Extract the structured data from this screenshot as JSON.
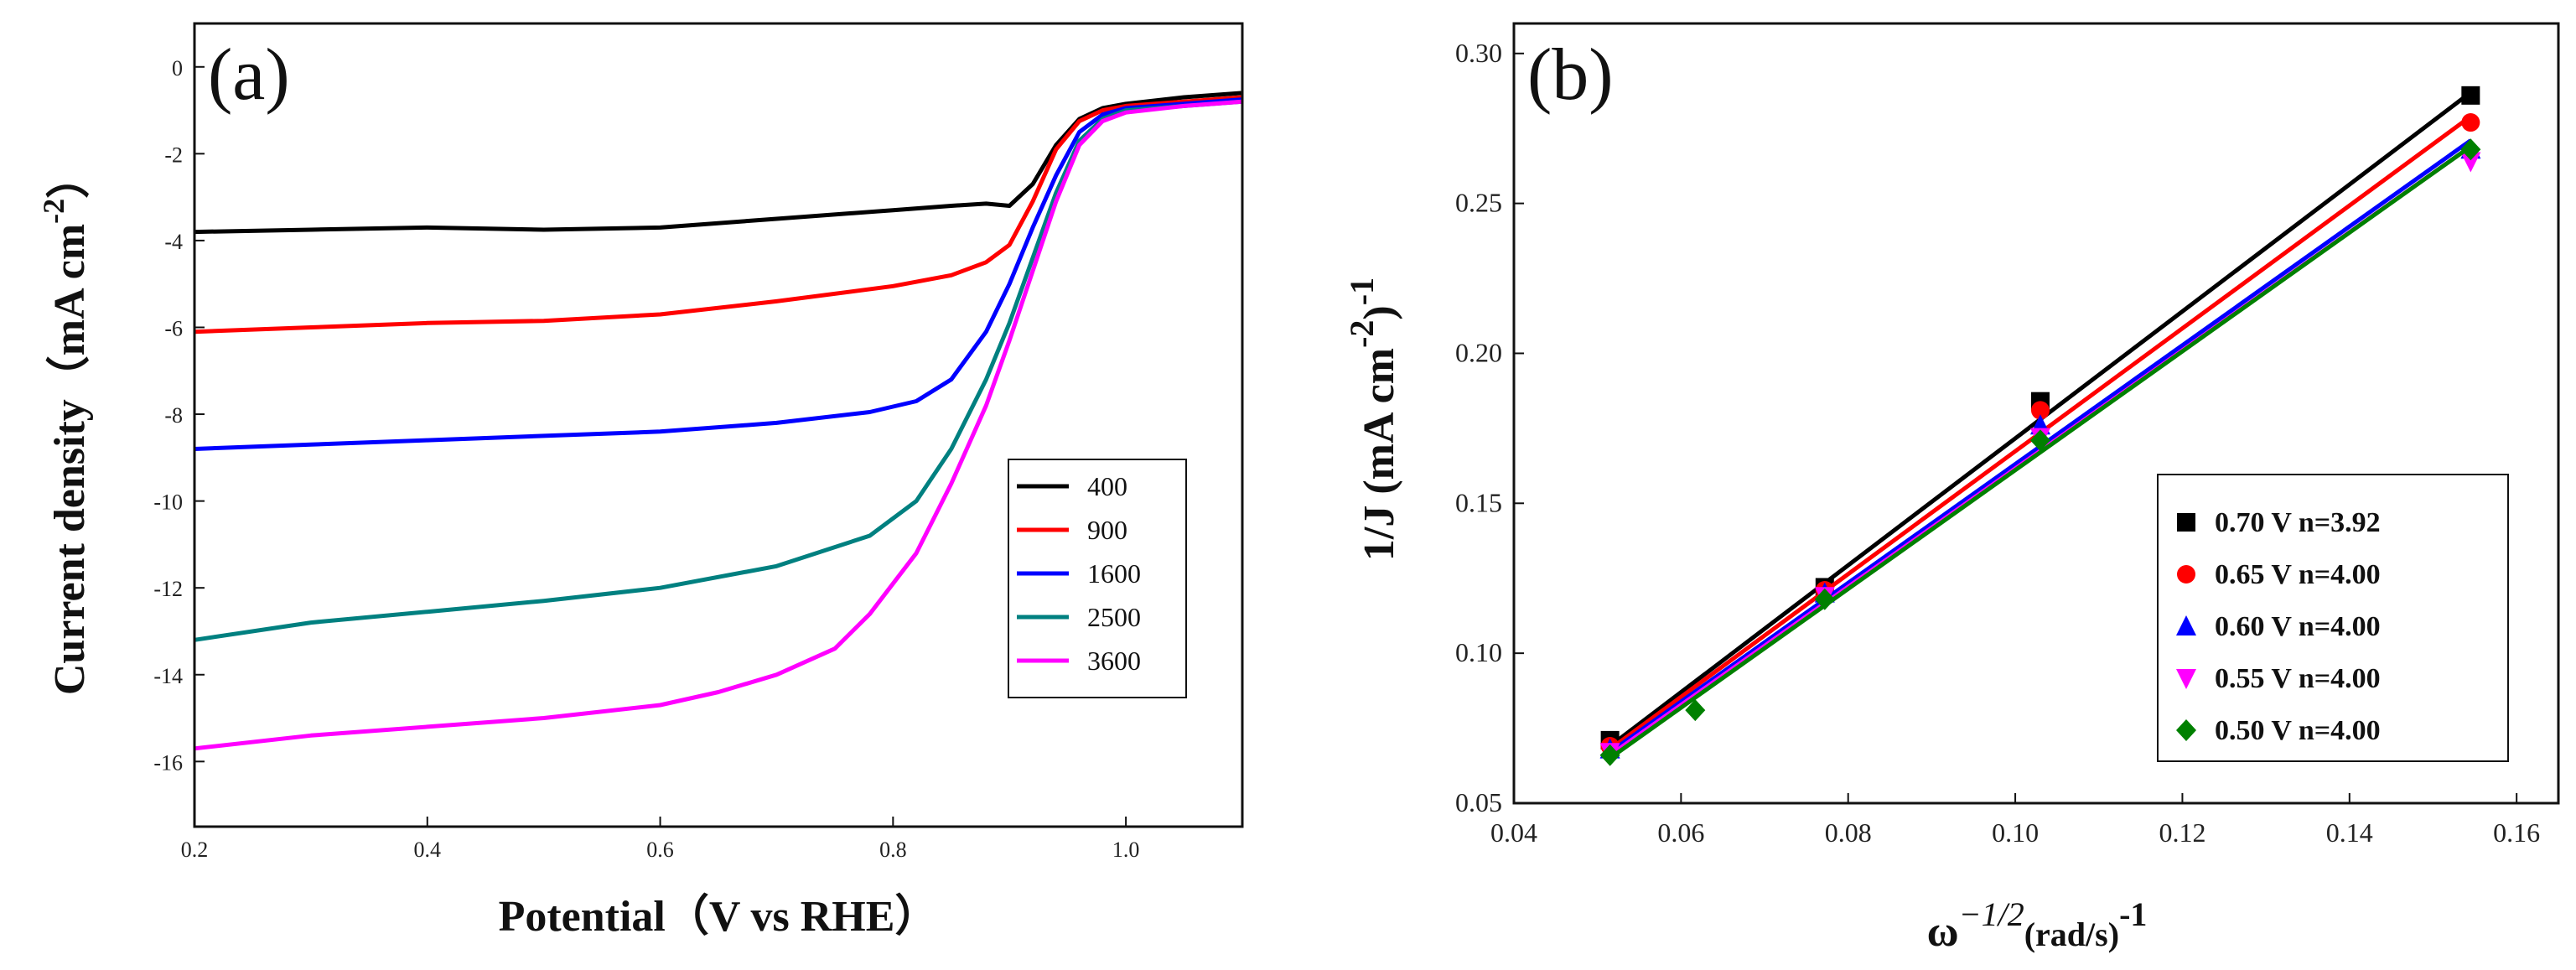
{
  "chart_data": [
    {
      "panel_label": "(a)",
      "type": "line",
      "xlabel": "Potential（V vs RHE）",
      "ylabel_main": "Current density（mA cm",
      "ylabel_sup": "-2",
      "ylabel_close": "）",
      "xlim": [
        0.2,
        1.1
      ],
      "ylim": [
        -17.5,
        1.0
      ],
      "xticks": [
        0.2,
        0.4,
        0.6,
        0.8,
        1.0
      ],
      "xtick_labels": [
        "0.2",
        "0.4",
        "0.6",
        "0.8",
        "1.0"
      ],
      "yticks": [
        0,
        -2,
        -4,
        -6,
        -8,
        -10,
        -12,
        -14,
        -16
      ],
      "ytick_labels": [
        "0",
        "-2",
        "-4",
        "-6",
        "-8",
        "-10",
        "-12",
        "-14",
        "-16"
      ],
      "legend_position": "center-right",
      "series": [
        {
          "name": "400",
          "color": "#000000",
          "x": [
            0.2,
            0.3,
            0.4,
            0.5,
            0.6,
            0.7,
            0.8,
            0.85,
            0.88,
            0.9,
            0.92,
            0.94,
            0.96,
            0.98,
            1.0,
            1.05,
            1.1
          ],
          "y": [
            -3.8,
            -3.75,
            -3.7,
            -3.75,
            -3.7,
            -3.5,
            -3.3,
            -3.2,
            -3.15,
            -3.2,
            -2.7,
            -1.8,
            -1.2,
            -0.95,
            -0.85,
            -0.7,
            -0.6
          ]
        },
        {
          "name": "900",
          "color": "#ff0000",
          "x": [
            0.2,
            0.3,
            0.4,
            0.5,
            0.6,
            0.7,
            0.8,
            0.85,
            0.88,
            0.9,
            0.92,
            0.94,
            0.96,
            0.98,
            1.0,
            1.05,
            1.1
          ],
          "y": [
            -6.1,
            -6.0,
            -5.9,
            -5.85,
            -5.7,
            -5.4,
            -5.05,
            -4.8,
            -4.5,
            -4.1,
            -3.1,
            -1.9,
            -1.25,
            -1.0,
            -0.9,
            -0.8,
            -0.7
          ]
        },
        {
          "name": "1600",
          "color": "#0000ff",
          "x": [
            0.2,
            0.3,
            0.4,
            0.5,
            0.6,
            0.7,
            0.78,
            0.82,
            0.85,
            0.88,
            0.9,
            0.92,
            0.94,
            0.96,
            0.98,
            1.0,
            1.05,
            1.1
          ],
          "y": [
            -8.8,
            -8.7,
            -8.6,
            -8.5,
            -8.4,
            -8.2,
            -7.95,
            -7.7,
            -7.2,
            -6.1,
            -5.0,
            -3.7,
            -2.5,
            -1.5,
            -1.1,
            -0.95,
            -0.85,
            -0.75
          ]
        },
        {
          "name": "2500",
          "color": "#008080",
          "x": [
            0.2,
            0.3,
            0.4,
            0.5,
            0.6,
            0.7,
            0.78,
            0.82,
            0.85,
            0.88,
            0.9,
            0.92,
            0.94,
            0.96,
            0.98,
            1.0,
            1.05,
            1.1
          ],
          "y": [
            -13.2,
            -12.8,
            -12.55,
            -12.3,
            -12.0,
            -11.5,
            -10.8,
            -10.0,
            -8.8,
            -7.2,
            -5.9,
            -4.4,
            -2.9,
            -1.7,
            -1.2,
            -1.0,
            -0.9,
            -0.8
          ]
        },
        {
          "name": "3600",
          "color": "#ff00ff",
          "x": [
            0.2,
            0.3,
            0.4,
            0.5,
            0.6,
            0.65,
            0.7,
            0.75,
            0.78,
            0.82,
            0.85,
            0.88,
            0.9,
            0.92,
            0.94,
            0.96,
            0.98,
            1.0,
            1.05,
            1.1
          ],
          "y": [
            -15.7,
            -15.4,
            -15.2,
            -15.0,
            -14.7,
            -14.4,
            -14.0,
            -13.4,
            -12.6,
            -11.2,
            -9.6,
            -7.8,
            -6.3,
            -4.7,
            -3.1,
            -1.8,
            -1.25,
            -1.05,
            -0.9,
            -0.8
          ]
        }
      ]
    },
    {
      "panel_label": "(b)",
      "type": "scatter",
      "xlabel_main": "ω",
      "xlabel_sup": "−1/2",
      "xlabel_unit": "(rad/s)",
      "xlabel_sup2": "-1",
      "ylabel_main": "1/J (mA cm",
      "ylabel_sup": "-2",
      "ylabel_close": ")",
      "ylabel_sup2": "-1",
      "xlim": [
        0.04,
        0.165
      ],
      "ylim": [
        0.05,
        0.31
      ],
      "xticks": [
        0.04,
        0.06,
        0.08,
        0.1,
        0.12,
        0.14,
        0.16
      ],
      "xtick_labels": [
        "0.04",
        "0.06",
        "0.08",
        "0.10",
        "0.12",
        "0.14",
        "0.16"
      ],
      "yticks": [
        0.05,
        0.1,
        0.15,
        0.2,
        0.25,
        0.3
      ],
      "ytick_labels": [
        "0.05",
        "0.10",
        "0.15",
        "0.20",
        "0.25",
        "0.30"
      ],
      "legend_position": "bottom-right",
      "series": [
        {
          "name": "0.70 V n=3.92",
          "color": "#000000",
          "marker": "square",
          "x": [
            0.0515,
            0.0772,
            0.103,
            0.1545
          ],
          "y": [
            0.071,
            0.122,
            0.184,
            0.286
          ],
          "fit": {
            "x": [
              0.0515,
              0.1545
            ],
            "y": [
              0.069,
              0.287
            ]
          }
        },
        {
          "name": "0.65 V n=4.00",
          "color": "#ff0000",
          "marker": "circle",
          "x": [
            0.0515,
            0.0772,
            0.103,
            0.1545
          ],
          "y": [
            0.069,
            0.121,
            0.181,
            0.277
          ],
          "fit": {
            "x": [
              0.0515,
              0.1545
            ],
            "y": [
              0.068,
              0.279
            ]
          }
        },
        {
          "name": "0.60 V n=4.00",
          "color": "#0000ff",
          "marker": "triangle-up",
          "x": [
            0.0515,
            0.0772,
            0.103,
            0.1545
          ],
          "y": [
            0.068,
            0.12,
            0.176,
            0.268
          ],
          "fit": {
            "x": [
              0.0515,
              0.1545
            ],
            "y": [
              0.067,
              0.271
            ]
          }
        },
        {
          "name": "0.55 V n=4.00",
          "color": "#ff00ff",
          "marker": "triangle-down",
          "x": [
            0.0515,
            0.0772,
            0.103,
            0.1545
          ],
          "y": [
            0.067,
            0.119,
            0.172,
            0.264
          ],
          "fit": {
            "x": [
              0.0515,
              0.1545
            ],
            "y": [
              0.066,
              0.269
            ]
          }
        },
        {
          "name": "0.50 V n=4.00",
          "color": "#008000",
          "marker": "diamond",
          "x": [
            0.0515,
            0.0617,
            0.0772,
            0.103,
            0.1545
          ],
          "y": [
            0.066,
            0.081,
            0.118,
            0.171,
            0.268
          ],
          "fit": {
            "x": [
              0.0515,
              0.1545
            ],
            "y": [
              0.065,
              0.269
            ]
          }
        }
      ]
    }
  ]
}
